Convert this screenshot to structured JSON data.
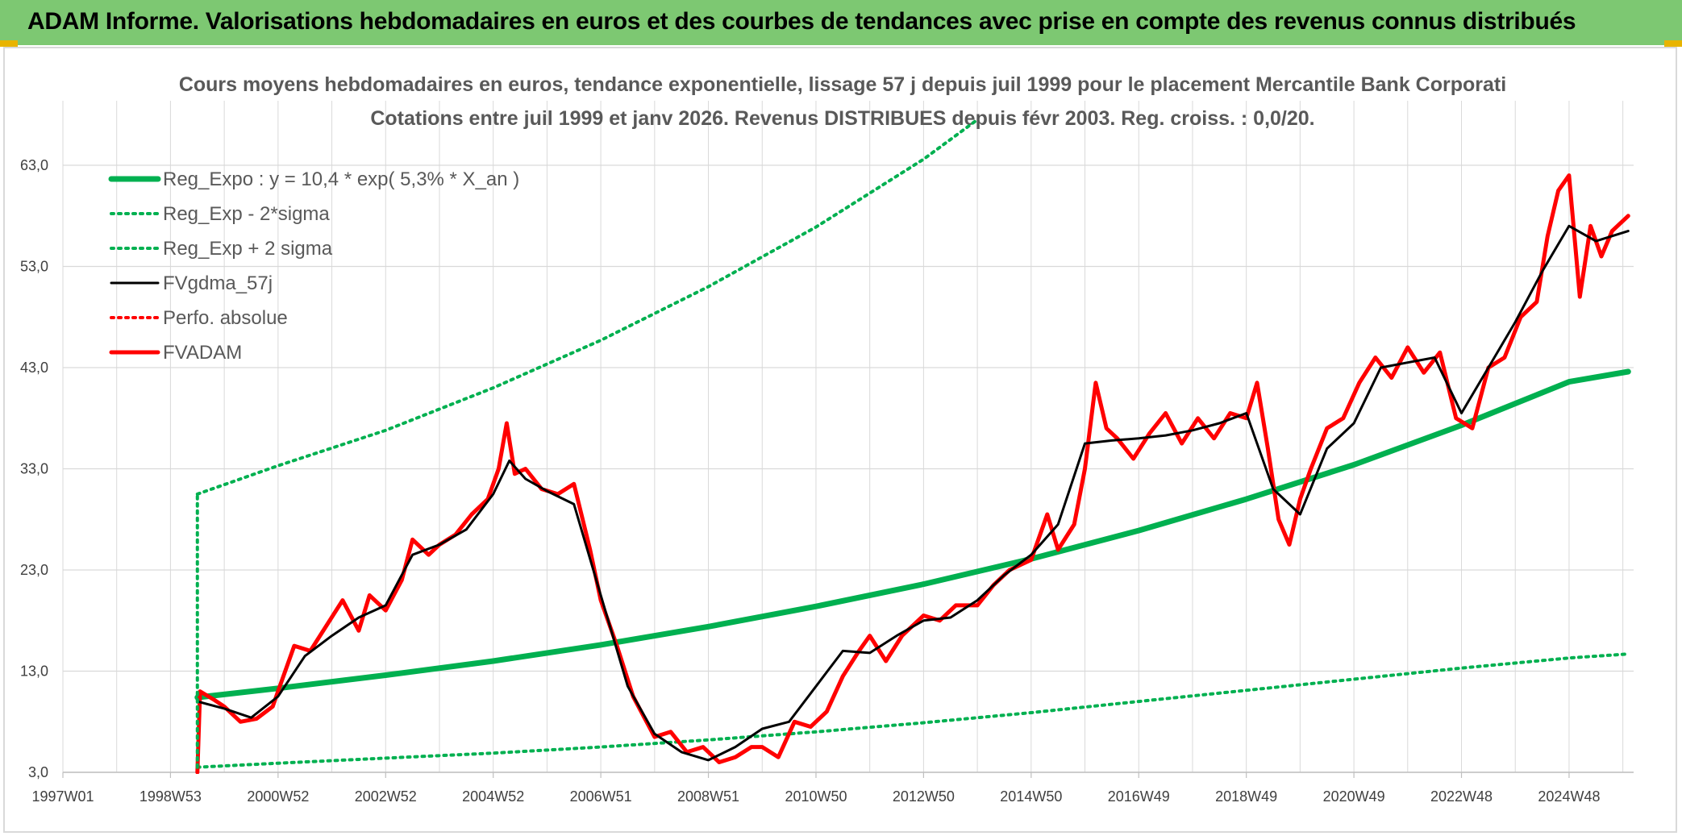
{
  "header": {
    "title": "ADAM Informe. Valorisations hebdomadaires en euros et des courbes de tendances avec prise en compte des revenus connus distribués"
  },
  "chart_data": {
    "type": "line",
    "title": "Cours moyens hebdomadaires en euros, tendance exponentielle, lissage 57 j depuis juil 1999 pour le placement Mercantile Bank Corporati",
    "subtitle": "Cotations entre juil 1999 et janv 2026. Revenus DISTRIBUES depuis févr 2003. Reg. croiss. : 0,0/20.",
    "xlabel": "",
    "ylabel": "",
    "ylim": [
      3,
      63
    ],
    "xlim": [
      1997.0,
      2026.2
    ],
    "grid": true,
    "legend_position": "top-left",
    "y_ticks": [
      "3,0",
      "13,0",
      "23,0",
      "33,0",
      "43,0",
      "53,0",
      "63,0"
    ],
    "y_tick_values": [
      3,
      13,
      23,
      33,
      43,
      53,
      63
    ],
    "x_ticks": [
      "1997W01",
      "1998W53",
      "2000W52",
      "2002W52",
      "2004W52",
      "2006W51",
      "2008W51",
      "2010W50",
      "2012W50",
      "2014W50",
      "2016W49",
      "2018W49",
      "2020W49",
      "2022W48",
      "2024W48"
    ],
    "x_tick_values": [
      1997.0,
      1999.0,
      2001.0,
      2003.0,
      2005.0,
      2007.0,
      2009.0,
      2011.0,
      2013.0,
      2015.0,
      2017.0,
      2019.0,
      2021.0,
      2023.0,
      2025.0
    ],
    "colors": {
      "trend": "#00b050",
      "smooth": "#000000",
      "perf": "#ff0000",
      "adam": "#ff0000",
      "grid": "#d9d9d9"
    },
    "series": [
      {
        "name": "Reg_Expo : y = 10,4 * exp( 5,3% *  X_an )",
        "style": "solid-thick",
        "color": "#00b050",
        "x": [
          1999.5,
          2001,
          2003,
          2005,
          2007,
          2009,
          2011,
          2013,
          2015,
          2017,
          2019,
          2021,
          2023,
          2025,
          2026.1
        ],
        "values": [
          10.4,
          11.3,
          12.6,
          14.0,
          15.6,
          17.4,
          19.4,
          21.6,
          24.1,
          26.9,
          30.0,
          33.4,
          37.3,
          41.6,
          42.6
        ]
      },
      {
        "name": "Reg_Exp - 2*sigma",
        "style": "dotted",
        "color": "#00b050",
        "x": [
          1999.5,
          2001,
          2003,
          2005,
          2007,
          2009,
          2011,
          2013,
          2015,
          2017,
          2019,
          2021,
          2023,
          2025,
          2026.1
        ],
        "values": [
          3.5,
          3.9,
          4.4,
          4.9,
          5.5,
          6.2,
          7.0,
          7.9,
          8.9,
          10.0,
          11.1,
          12.2,
          13.3,
          14.3,
          14.7
        ]
      },
      {
        "name": "Reg_Exp + 2 sigma",
        "style": "dotted",
        "color": "#00b050",
        "x": [
          1999.5,
          2001,
          2003,
          2005,
          2007,
          2009,
          2011,
          2013,
          2014.0
        ],
        "values": [
          30.5,
          33.3,
          36.8,
          41.0,
          45.7,
          51.0,
          56.9,
          63.6,
          67.5
        ]
      },
      {
        "name": "FVgdma_57j",
        "style": "solid",
        "color": "#000000",
        "x": [
          1999.5,
          2000.0,
          2000.5,
          2001.0,
          2001.5,
          2002.0,
          2002.5,
          2003.0,
          2003.5,
          2004.0,
          2004.5,
          2005.0,
          2005.3,
          2005.6,
          2006.0,
          2006.5,
          2007.0,
          2007.5,
          2008.0,
          2008.5,
          2009.0,
          2009.5,
          2010.0,
          2010.5,
          2011.0,
          2011.5,
          2012.0,
          2012.5,
          2013.0,
          2013.5,
          2014.0,
          2014.5,
          2015.0,
          2015.5,
          2016.0,
          2016.5,
          2017.0,
          2017.5,
          2018.0,
          2018.5,
          2019.0,
          2019.5,
          2020.0,
          2020.5,
          2021.0,
          2021.5,
          2022.0,
          2022.5,
          2023.0,
          2023.5,
          2024.0,
          2024.5,
          2025.0,
          2025.5,
          2026.1
        ],
        "values": [
          10.0,
          9.3,
          8.4,
          10.5,
          14.5,
          16.5,
          18.3,
          19.5,
          24.5,
          25.5,
          27.0,
          30.5,
          33.8,
          32.0,
          30.8,
          29.5,
          20.5,
          11.5,
          6.8,
          5.0,
          4.2,
          5.5,
          7.3,
          8.0,
          11.5,
          15.0,
          14.8,
          16.5,
          18.0,
          18.3,
          20.0,
          22.5,
          24.5,
          27.5,
          35.5,
          35.8,
          36.0,
          36.3,
          36.8,
          37.5,
          38.5,
          31.0,
          28.5,
          35.0,
          37.5,
          43.0,
          43.5,
          44.0,
          38.5,
          43.0,
          47.5,
          52.5,
          57.0,
          55.5,
          56.5
        ]
      },
      {
        "name": "Perfo. absolue",
        "style": "dotted",
        "color": "#ff0000",
        "x": [],
        "values": []
      },
      {
        "name": "FVADAM",
        "style": "solid-thick",
        "color": "#ff0000",
        "x": [
          1999.5,
          1999.55,
          1999.8,
          2000.0,
          2000.3,
          2000.6,
          2000.9,
          2001.0,
          2001.3,
          2001.6,
          2001.9,
          2002.2,
          2002.5,
          2002.7,
          2003.0,
          2003.3,
          2003.5,
          2003.8,
          2004.0,
          2004.3,
          2004.6,
          2004.9,
          2005.1,
          2005.25,
          2005.4,
          2005.6,
          2005.9,
          2006.2,
          2006.5,
          2006.8,
          2007.0,
          2007.3,
          2007.6,
          2008.0,
          2008.3,
          2008.6,
          2008.9,
          2009.2,
          2009.5,
          2009.8,
          2010.0,
          2010.3,
          2010.6,
          2010.9,
          2011.2,
          2011.5,
          2011.8,
          2012.0,
          2012.3,
          2012.6,
          2013.0,
          2013.3,
          2013.6,
          2014.0,
          2014.3,
          2014.6,
          2015.0,
          2015.3,
          2015.5,
          2015.8,
          2016.0,
          2016.2,
          2016.4,
          2016.6,
          2016.9,
          2017.2,
          2017.5,
          2017.8,
          2018.1,
          2018.4,
          2018.7,
          2019.0,
          2019.2,
          2019.4,
          2019.6,
          2019.8,
          2020.0,
          2020.2,
          2020.5,
          2020.8,
          2021.1,
          2021.4,
          2021.7,
          2022.0,
          2022.3,
          2022.6,
          2022.9,
          2023.2,
          2023.5,
          2023.8,
          2024.1,
          2024.4,
          2024.6,
          2024.8,
          2025.0,
          2025.2,
          2025.4,
          2025.6,
          2025.8,
          2026.1
        ],
        "values": [
          3.0,
          11.0,
          10.2,
          9.5,
          8.0,
          8.3,
          9.5,
          11.0,
          15.5,
          15.0,
          17.5,
          20.0,
          17.0,
          20.5,
          19.0,
          22.0,
          26.0,
          24.5,
          25.5,
          26.5,
          28.5,
          30.0,
          33.0,
          37.5,
          32.5,
          33.0,
          31.0,
          30.5,
          31.5,
          25.0,
          20.0,
          15.5,
          10.5,
          6.5,
          7.0,
          5.0,
          5.5,
          4.0,
          4.5,
          5.5,
          5.5,
          4.5,
          8.0,
          7.5,
          9.0,
          12.5,
          15.0,
          16.5,
          14.0,
          16.5,
          18.5,
          18.0,
          19.5,
          19.5,
          21.5,
          23.0,
          24.0,
          28.5,
          25.0,
          27.5,
          33.0,
          41.5,
          37.0,
          36.0,
          34.0,
          36.5,
          38.5,
          35.5,
          38.0,
          36.0,
          38.5,
          38.0,
          41.5,
          35.0,
          28.0,
          25.5,
          30.0,
          33.0,
          37.0,
          38.0,
          41.5,
          44.0,
          42.0,
          45.0,
          42.5,
          44.5,
          38.0,
          37.0,
          43.0,
          44.0,
          48.0,
          49.5,
          56.0,
          60.5,
          62.0,
          50.0,
          57.0,
          54.0,
          56.5,
          58.0
        ]
      }
    ]
  }
}
